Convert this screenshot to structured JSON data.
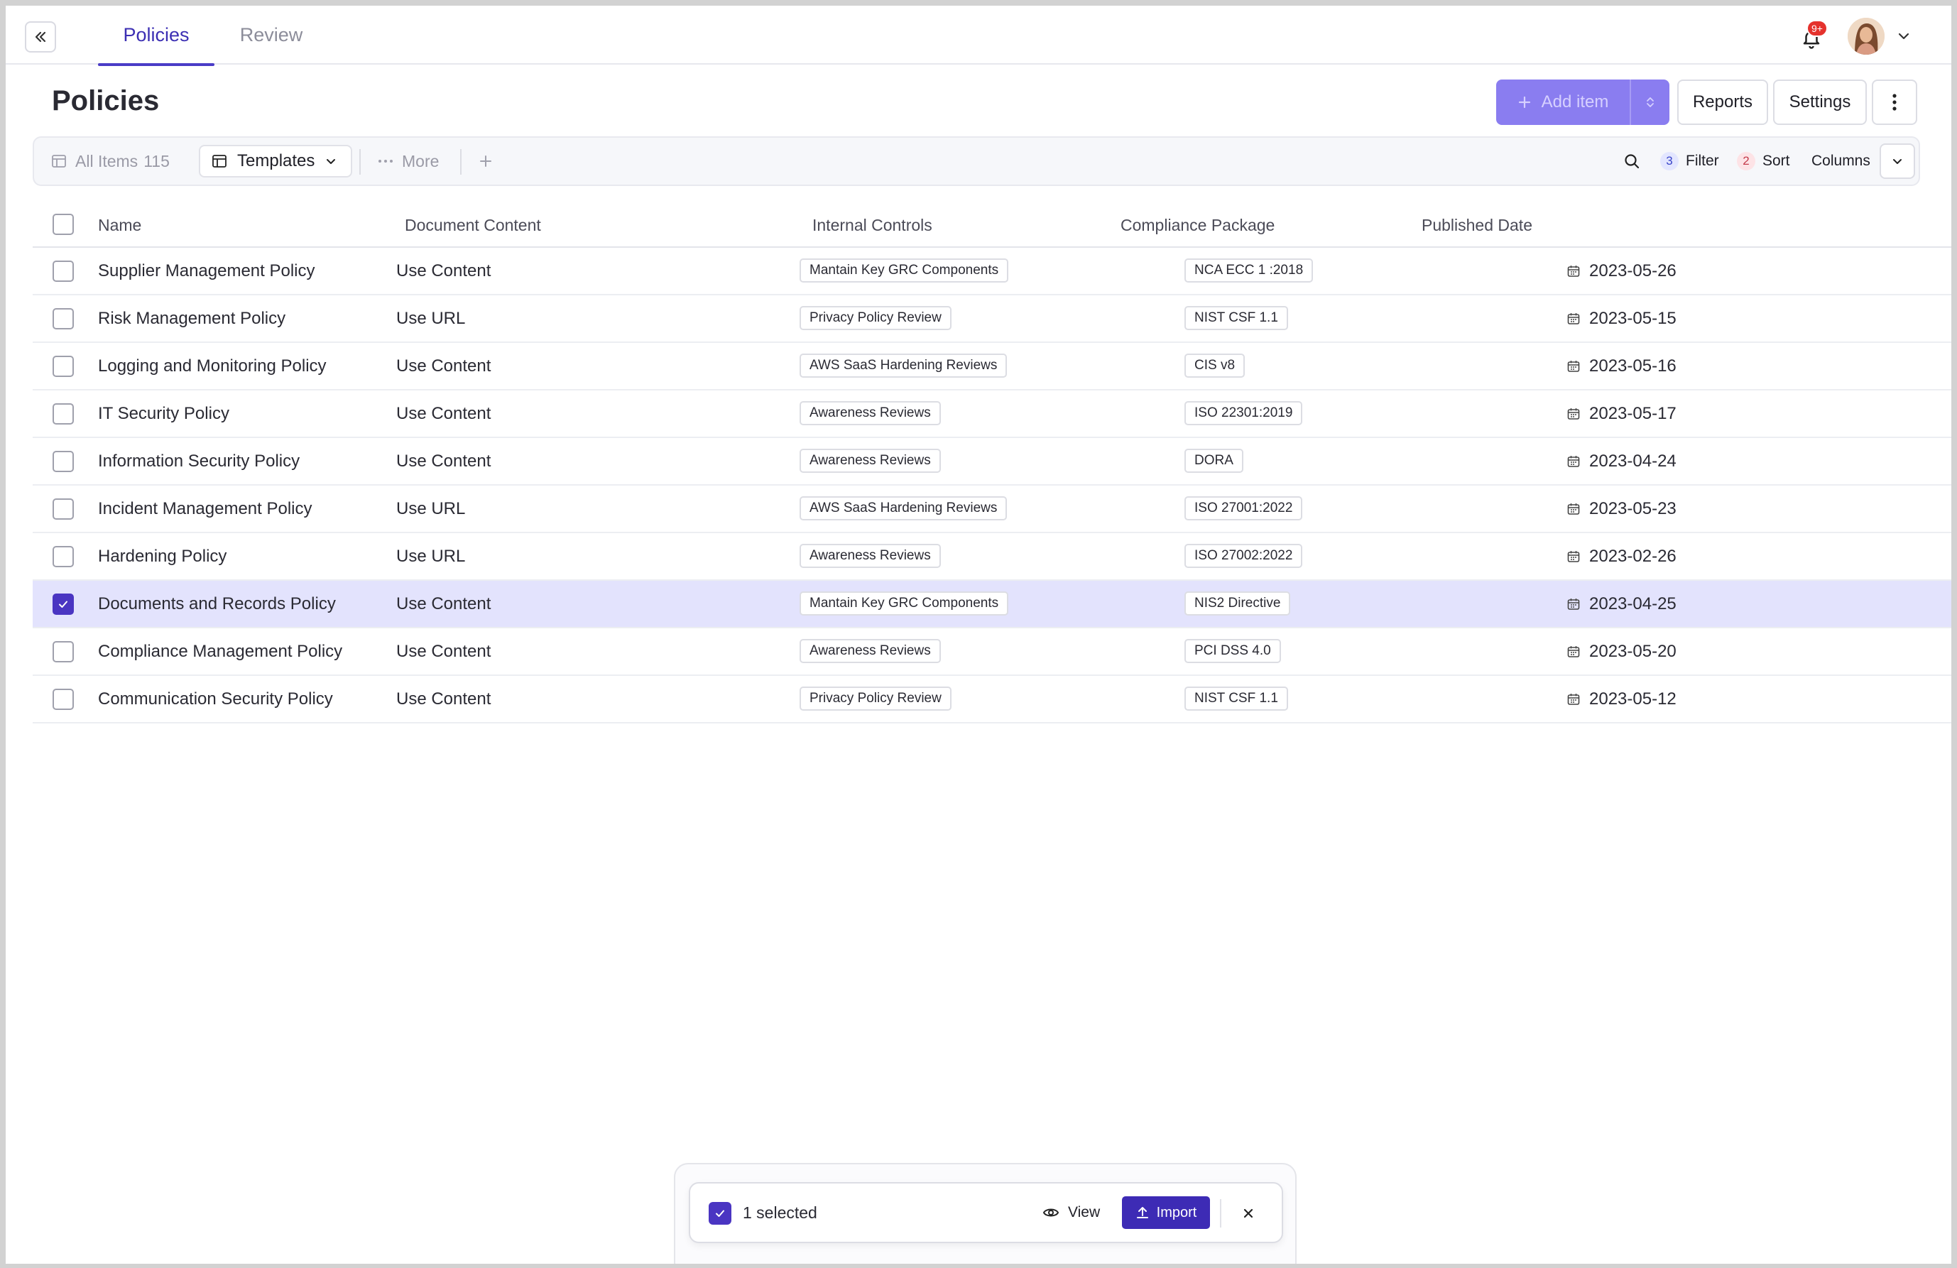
{
  "header": {
    "tabs": [
      {
        "label": "Policies",
        "active": true
      },
      {
        "label": "Review",
        "active": false
      }
    ],
    "notification_badge": "9+"
  },
  "page": {
    "title": "Policies",
    "add_item_label": "Add item",
    "reports_label": "Reports",
    "settings_label": "Settings"
  },
  "toolbar": {
    "all_items_label": "All Items",
    "all_items_count": "115",
    "templates_label": "Templates",
    "more_label": "More",
    "filter_count": "3",
    "filter_label": "Filter",
    "sort_count": "2",
    "sort_label": "Sort",
    "columns_label": "Columns"
  },
  "table": {
    "columns": [
      "Name",
      "Document Content",
      "Internal Controls",
      "Compliance Package",
      "Published Date"
    ],
    "rows": [
      {
        "name": "Supplier Management Policy",
        "content": "Use Content",
        "control": "Mantain Key GRC Components",
        "package": "NCA ECC 1 :2018",
        "date": "2023-05-26",
        "selected": false
      },
      {
        "name": "Risk Management Policy",
        "content": "Use URL",
        "control": "Privacy Policy Review",
        "package": "NIST CSF 1.1",
        "date": "2023-05-15",
        "selected": false
      },
      {
        "name": "Logging and Monitoring Policy",
        "content": "Use Content",
        "control": "AWS SaaS Hardening Reviews",
        "package": "CIS v8",
        "date": "2023-05-16",
        "selected": false
      },
      {
        "name": "IT Security Policy",
        "content": "Use Content",
        "control": "Awareness Reviews",
        "package": "ISO 22301:2019",
        "date": "2023-05-17",
        "selected": false
      },
      {
        "name": "Information Security Policy",
        "content": "Use Content",
        "control": "Awareness Reviews",
        "package": "DORA",
        "date": "2023-04-24",
        "selected": false
      },
      {
        "name": "Incident Management Policy",
        "content": "Use URL",
        "control": "AWS SaaS Hardening Reviews",
        "package": "ISO 27001:2022",
        "date": "2023-05-23",
        "selected": false
      },
      {
        "name": "Hardening Policy",
        "content": "Use URL",
        "control": "Awareness Reviews",
        "package": "ISO 27002:2022",
        "date": "2023-02-26",
        "selected": false
      },
      {
        "name": "Documents and Records Policy",
        "content": "Use Content",
        "control": "Mantain Key GRC Components",
        "package": "NIS2 Directive",
        "date": "2023-04-25",
        "selected": true
      },
      {
        "name": "Compliance Management Policy",
        "content": "Use Content",
        "control": "Awareness Reviews",
        "package": "PCI DSS 4.0",
        "date": "2023-05-20",
        "selected": false
      },
      {
        "name": "Communication Security Policy",
        "content": "Use Content",
        "control": "Privacy Policy Review",
        "package": "NIST CSF 1.1",
        "date": "2023-05-12",
        "selected": false
      }
    ]
  },
  "selection_bar": {
    "text": "1 selected",
    "view_label": "View",
    "import_label": "Import"
  },
  "icons": {
    "collapse": "double-chevron-left-icon",
    "bell": "bell-icon",
    "search": "search-icon",
    "calendar": "calendar-icon",
    "eye": "eye-icon",
    "upload": "upload-icon",
    "close": "close-icon"
  },
  "colors": {
    "accent": "#4a35c2",
    "add_button": "#8a7df0",
    "selected_row": "#e3e3fd",
    "badge_red": "#e5322d"
  }
}
